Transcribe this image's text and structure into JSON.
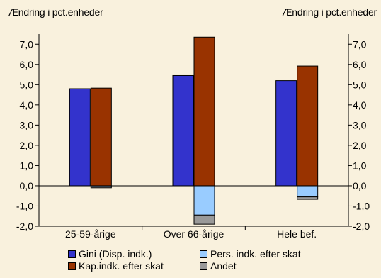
{
  "chart_data": {
    "type": "bar",
    "stacked": true,
    "y_axis_label_left": "Ændring i pct.enheder",
    "y_axis_label_right": "Ændring i pct.enheder",
    "categories": [
      "25-59-årige",
      "Over 66-årige",
      "Hele bef."
    ],
    "ylim": [
      -2.0,
      7.5
    ],
    "yticks": [
      "7,0",
      "6,0",
      "5,0",
      "4,0",
      "3,0",
      "2,0",
      "1,0",
      "0,0",
      "-1,0",
      "-2,0"
    ],
    "ytick_values": [
      7,
      6,
      5,
      4,
      3,
      2,
      1,
      0,
      -1,
      -2
    ],
    "series": [
      {
        "name": "Gini (Disp. indk.)",
        "color": "#3333cc",
        "values": [
          4.8,
          5.45,
          5.2
        ],
        "group": "gini"
      },
      {
        "name": "Kap.indk. efter skat",
        "color": "#993300",
        "values": [
          4.83,
          7.35,
          5.92
        ],
        "group": "components"
      },
      {
        "name": "Pers. indk. efter skat",
        "color": "#99ccff",
        "values": [
          -0.05,
          -1.45,
          -0.55
        ],
        "group": "components"
      },
      {
        "name": "Andet",
        "color": "#999999",
        "values": [
          -0.05,
          -0.45,
          -0.12
        ],
        "group": "components"
      }
    ],
    "legend_position": "bottom",
    "grid": false
  }
}
